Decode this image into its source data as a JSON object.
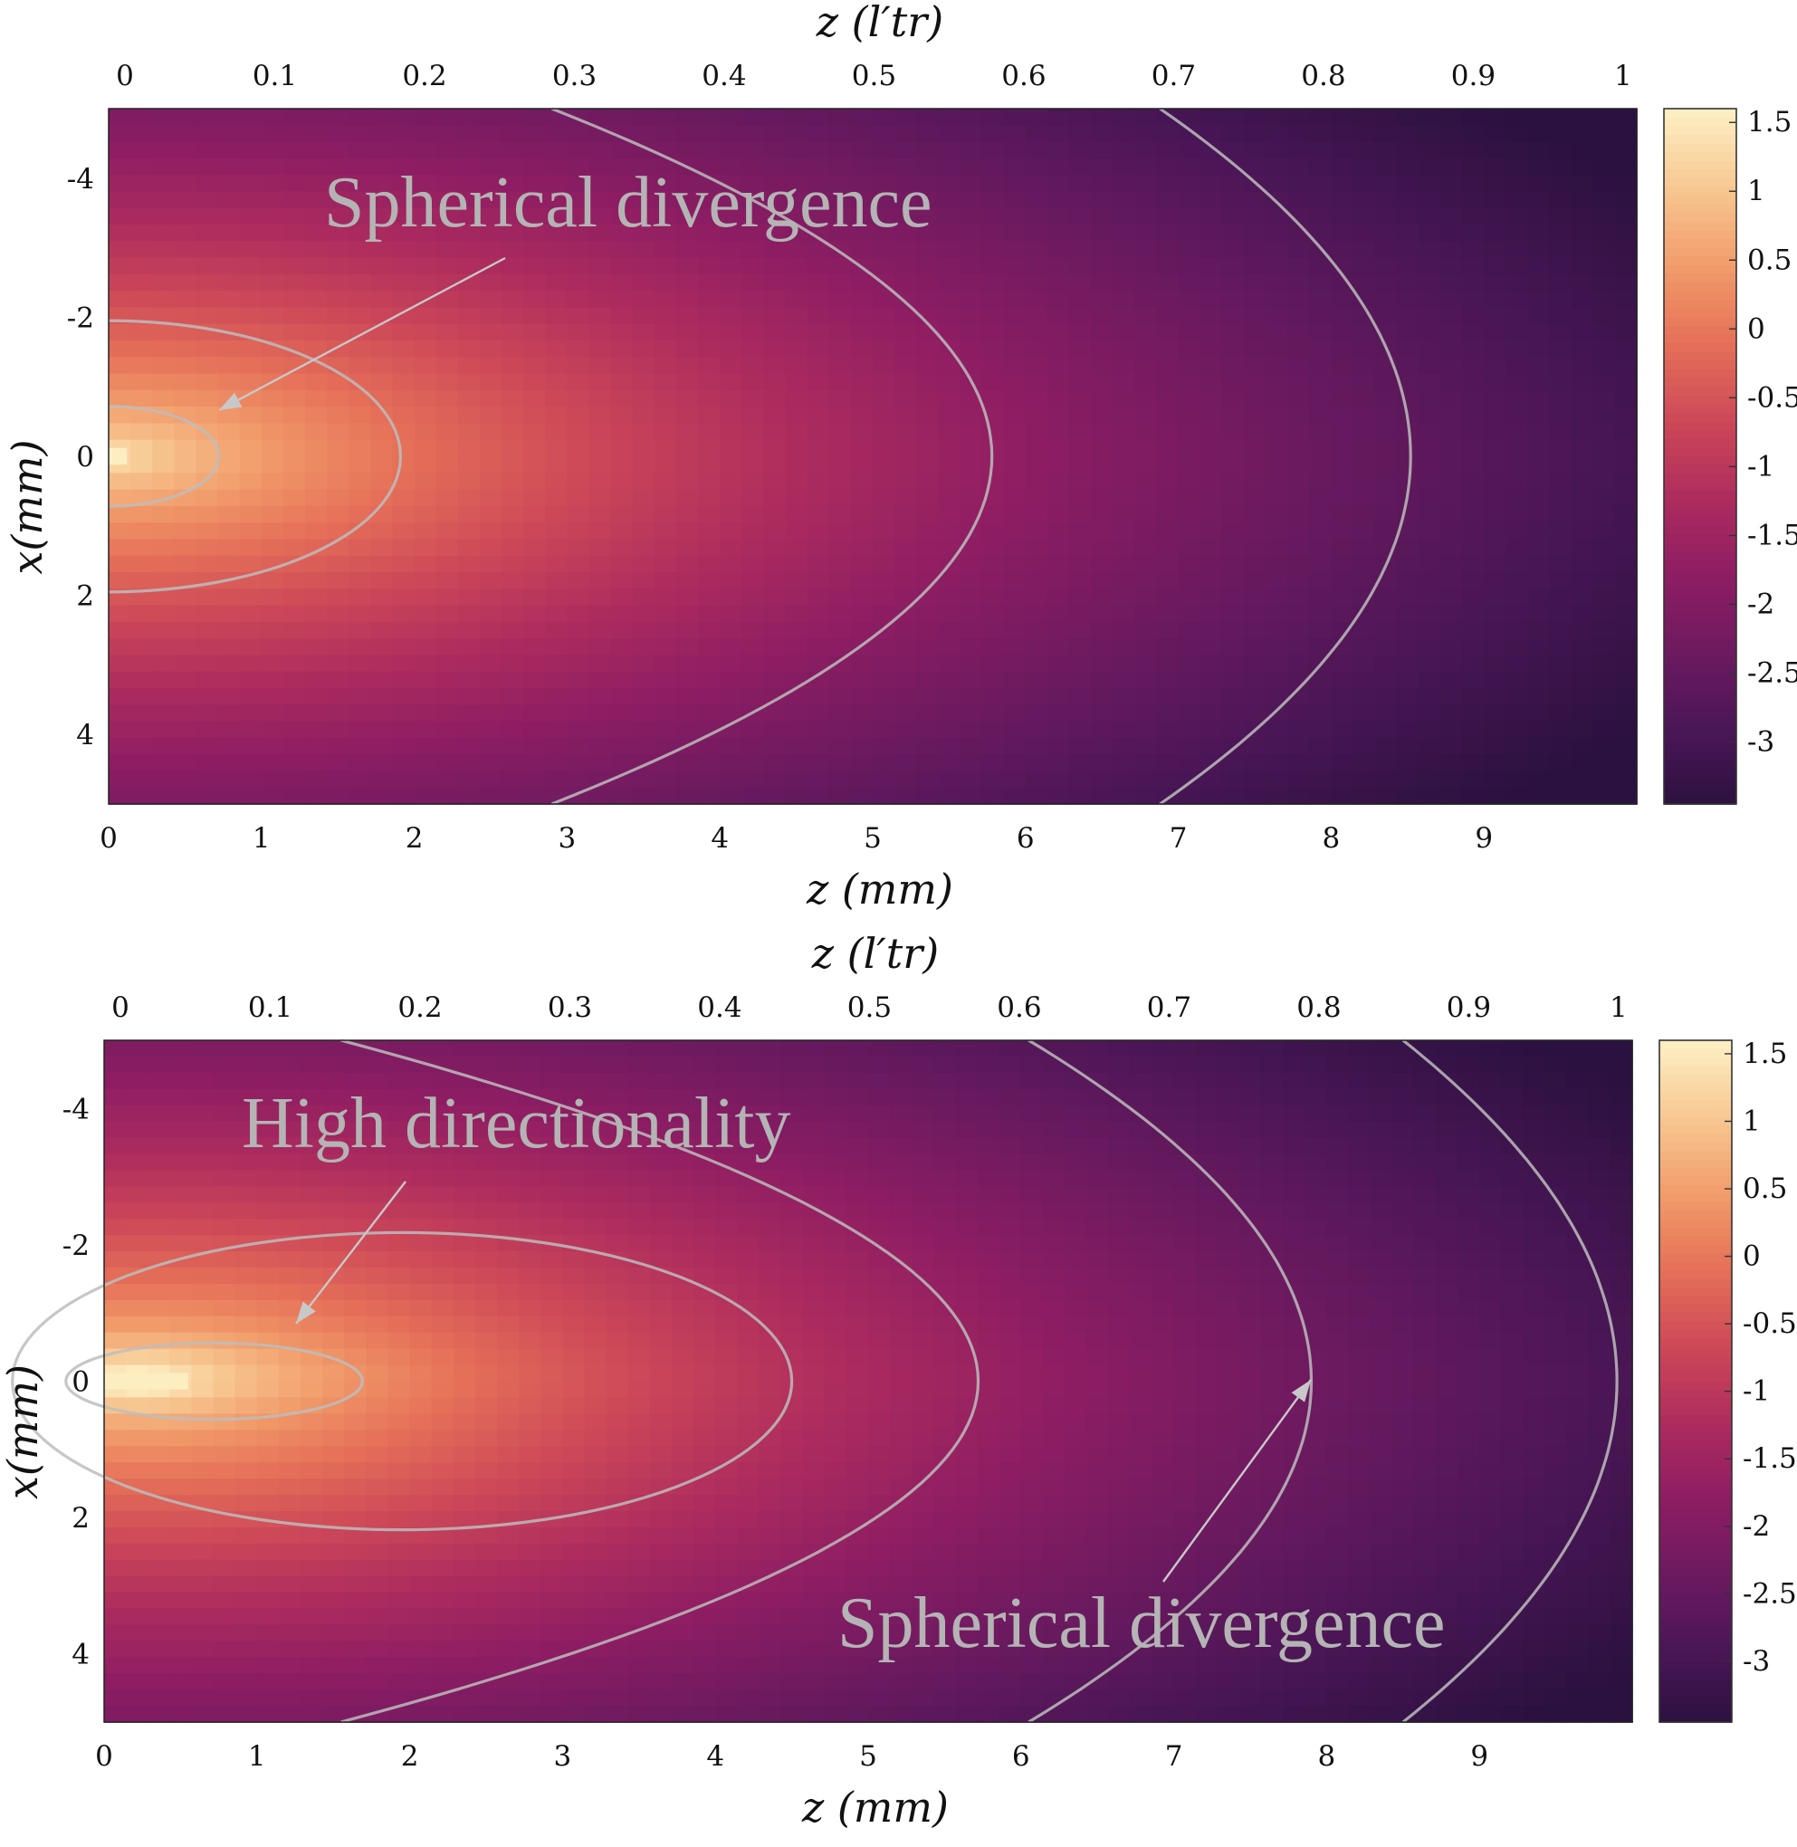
{
  "chart_data": [
    {
      "type": "heatmap",
      "top_axis_label": "z (l′tr)",
      "bottom_axis_label": "z (mm)",
      "ylabel": "x(mm)",
      "xlim": [
        0,
        10
      ],
      "ylim": [
        -5,
        5
      ],
      "y_reversed": true,
      "top_axis_ticks": [
        "0",
        "0.1",
        "0.2",
        "0.3",
        "0.4",
        "0.5",
        "0.6",
        "0.7",
        "0.8",
        "0.9",
        "1"
      ],
      "top_axis_range": [
        0,
        1.02
      ],
      "bottom_axis_ticks": [
        "0",
        "1",
        "2",
        "3",
        "4",
        "5",
        "6",
        "7",
        "8",
        "9"
      ],
      "y_ticks": [
        "-4",
        "-2",
        "0",
        "2",
        "4"
      ],
      "colorbar": {
        "range": [
          -3.45,
          1.6
        ],
        "ticks": [
          "1.5",
          "1",
          "0.5",
          "0",
          "-0.5",
          "-1",
          "-1.5",
          "-2",
          "-2.5",
          "-3"
        ],
        "colormap": [
          "#2b1140",
          "#4a1655",
          "#6c1a60",
          "#8d1d63",
          "#ad2c5e",
          "#cd4858",
          "#e56f58",
          "#f19b6a",
          "#f7c690",
          "#fdeec2"
        ]
      },
      "peak_location_mm": [
        0.0,
        0.0
      ],
      "contours": [
        {
          "type": "ellipse",
          "x_min": 0,
          "x_max": 0.72,
          "half_width": 0.72
        },
        {
          "type": "ellipse",
          "x_min": 0,
          "x_max": 1.91,
          "half_width": 1.95
        },
        {
          "type": "parabola",
          "vertex_z": 5.78,
          "z_at_edge": 2.9
        },
        {
          "type": "parabola",
          "vertex_z": 8.52,
          "z_at_edge": 6.88
        }
      ],
      "annotations": [
        {
          "text": "Spherical divergence",
          "arrow_to": [
            0.7,
            -0.3
          ]
        }
      ]
    },
    {
      "type": "heatmap",
      "top_axis_label": "z (l′tr)",
      "bottom_axis_label": "z (mm)",
      "ylabel": "x(mm)",
      "xlim": [
        0,
        10
      ],
      "ylim": [
        -5,
        5
      ],
      "y_reversed": true,
      "top_axis_ticks": [
        "0",
        "0.1",
        "0.2",
        "0.3",
        "0.4",
        "0.5",
        "0.6",
        "0.7",
        "0.8",
        "0.9",
        "1"
      ],
      "top_axis_range": [
        0,
        1.02
      ],
      "bottom_axis_ticks": [
        "0",
        "1",
        "2",
        "3",
        "4",
        "5",
        "6",
        "7",
        "8",
        "9"
      ],
      "y_ticks": [
        "-4",
        "-2",
        "0",
        "2",
        "4"
      ],
      "colorbar": {
        "range": [
          -3.45,
          1.6
        ],
        "ticks": [
          "1.5",
          "1",
          "0.5",
          "0",
          "-0.5",
          "-1",
          "-1.5",
          "-2",
          "-2.5",
          "-3"
        ],
        "colormap": [
          "#2b1140",
          "#4a1655",
          "#6c1a60",
          "#8d1d63",
          "#ad2c5e",
          "#cd4858",
          "#e56f58",
          "#f19b6a",
          "#f7c690",
          "#fdeec2"
        ]
      },
      "peak_location_mm": [
        0.25,
        -0.1
      ],
      "contours": [
        {
          "type": "ellipse",
          "cx": 0.72,
          "rx": 0.97,
          "ry": 0.56
        },
        {
          "type": "ellipse",
          "cx": 1.95,
          "rx": 2.55,
          "ry": 2.18
        },
        {
          "type": "parabola",
          "vertex_z": 5.72,
          "z_at_edge": 1.55
        },
        {
          "type": "parabola",
          "vertex_z": 7.9,
          "z_at_edge": 6.05
        },
        {
          "type": "parabola",
          "vertex_z": 9.9,
          "z_at_edge": 8.5
        }
      ],
      "annotations": [
        {
          "text": "High directionality",
          "arrow_to": [
            1.25,
            -0.8
          ]
        },
        {
          "text": "Spherical divergence",
          "arrow_to": [
            7.9,
            0.1
          ]
        }
      ]
    }
  ]
}
